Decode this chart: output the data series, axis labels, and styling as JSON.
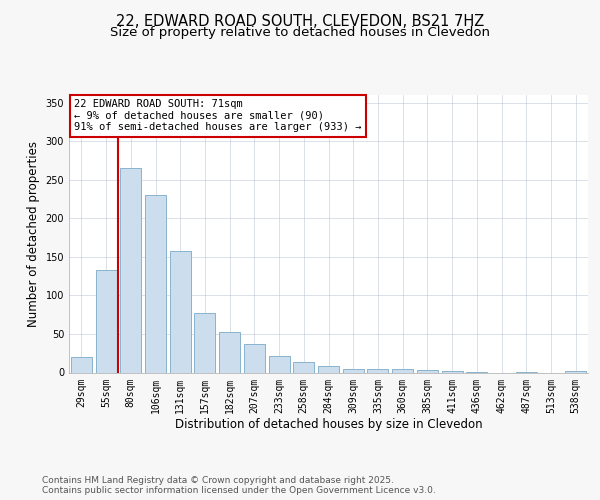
{
  "title1": "22, EDWARD ROAD SOUTH, CLEVEDON, BS21 7HZ",
  "title2": "Size of property relative to detached houses in Clevedon",
  "xlabel": "Distribution of detached houses by size in Clevedon",
  "ylabel": "Number of detached properties",
  "categories": [
    "29sqm",
    "55sqm",
    "80sqm",
    "106sqm",
    "131sqm",
    "157sqm",
    "182sqm",
    "207sqm",
    "233sqm",
    "258sqm",
    "284sqm",
    "309sqm",
    "335sqm",
    "360sqm",
    "385sqm",
    "411sqm",
    "436sqm",
    "462sqm",
    "487sqm",
    "513sqm",
    "538sqm"
  ],
  "values": [
    20,
    133,
    265,
    230,
    157,
    77,
    53,
    37,
    22,
    13,
    9,
    5,
    4,
    5,
    3,
    2,
    1,
    0,
    1,
    0,
    2
  ],
  "bar_color": "#ccdded",
  "bar_edge_color": "#7aaac8",
  "red_line_x": 2.0,
  "annotation_text": "22 EDWARD ROAD SOUTH: 71sqm\n← 9% of detached houses are smaller (90)\n91% of semi-detached houses are larger (933) →",
  "annotation_box_color": "#ffffff",
  "annotation_box_edge": "#cc0000",
  "red_line_color": "#cc0000",
  "ylim": [
    0,
    360
  ],
  "yticks": [
    0,
    50,
    100,
    150,
    200,
    250,
    300,
    350
  ],
  "footer1": "Contains HM Land Registry data © Crown copyright and database right 2025.",
  "footer2": "Contains public sector information licensed under the Open Government Licence v3.0.",
  "background_color": "#f7f7f7",
  "plot_bg_color": "#ffffff",
  "title_fontsize": 10.5,
  "subtitle_fontsize": 9.5,
  "tick_fontsize": 7,
  "label_fontsize": 8.5,
  "footer_fontsize": 6.5,
  "grid_color": "#c0c8d8"
}
